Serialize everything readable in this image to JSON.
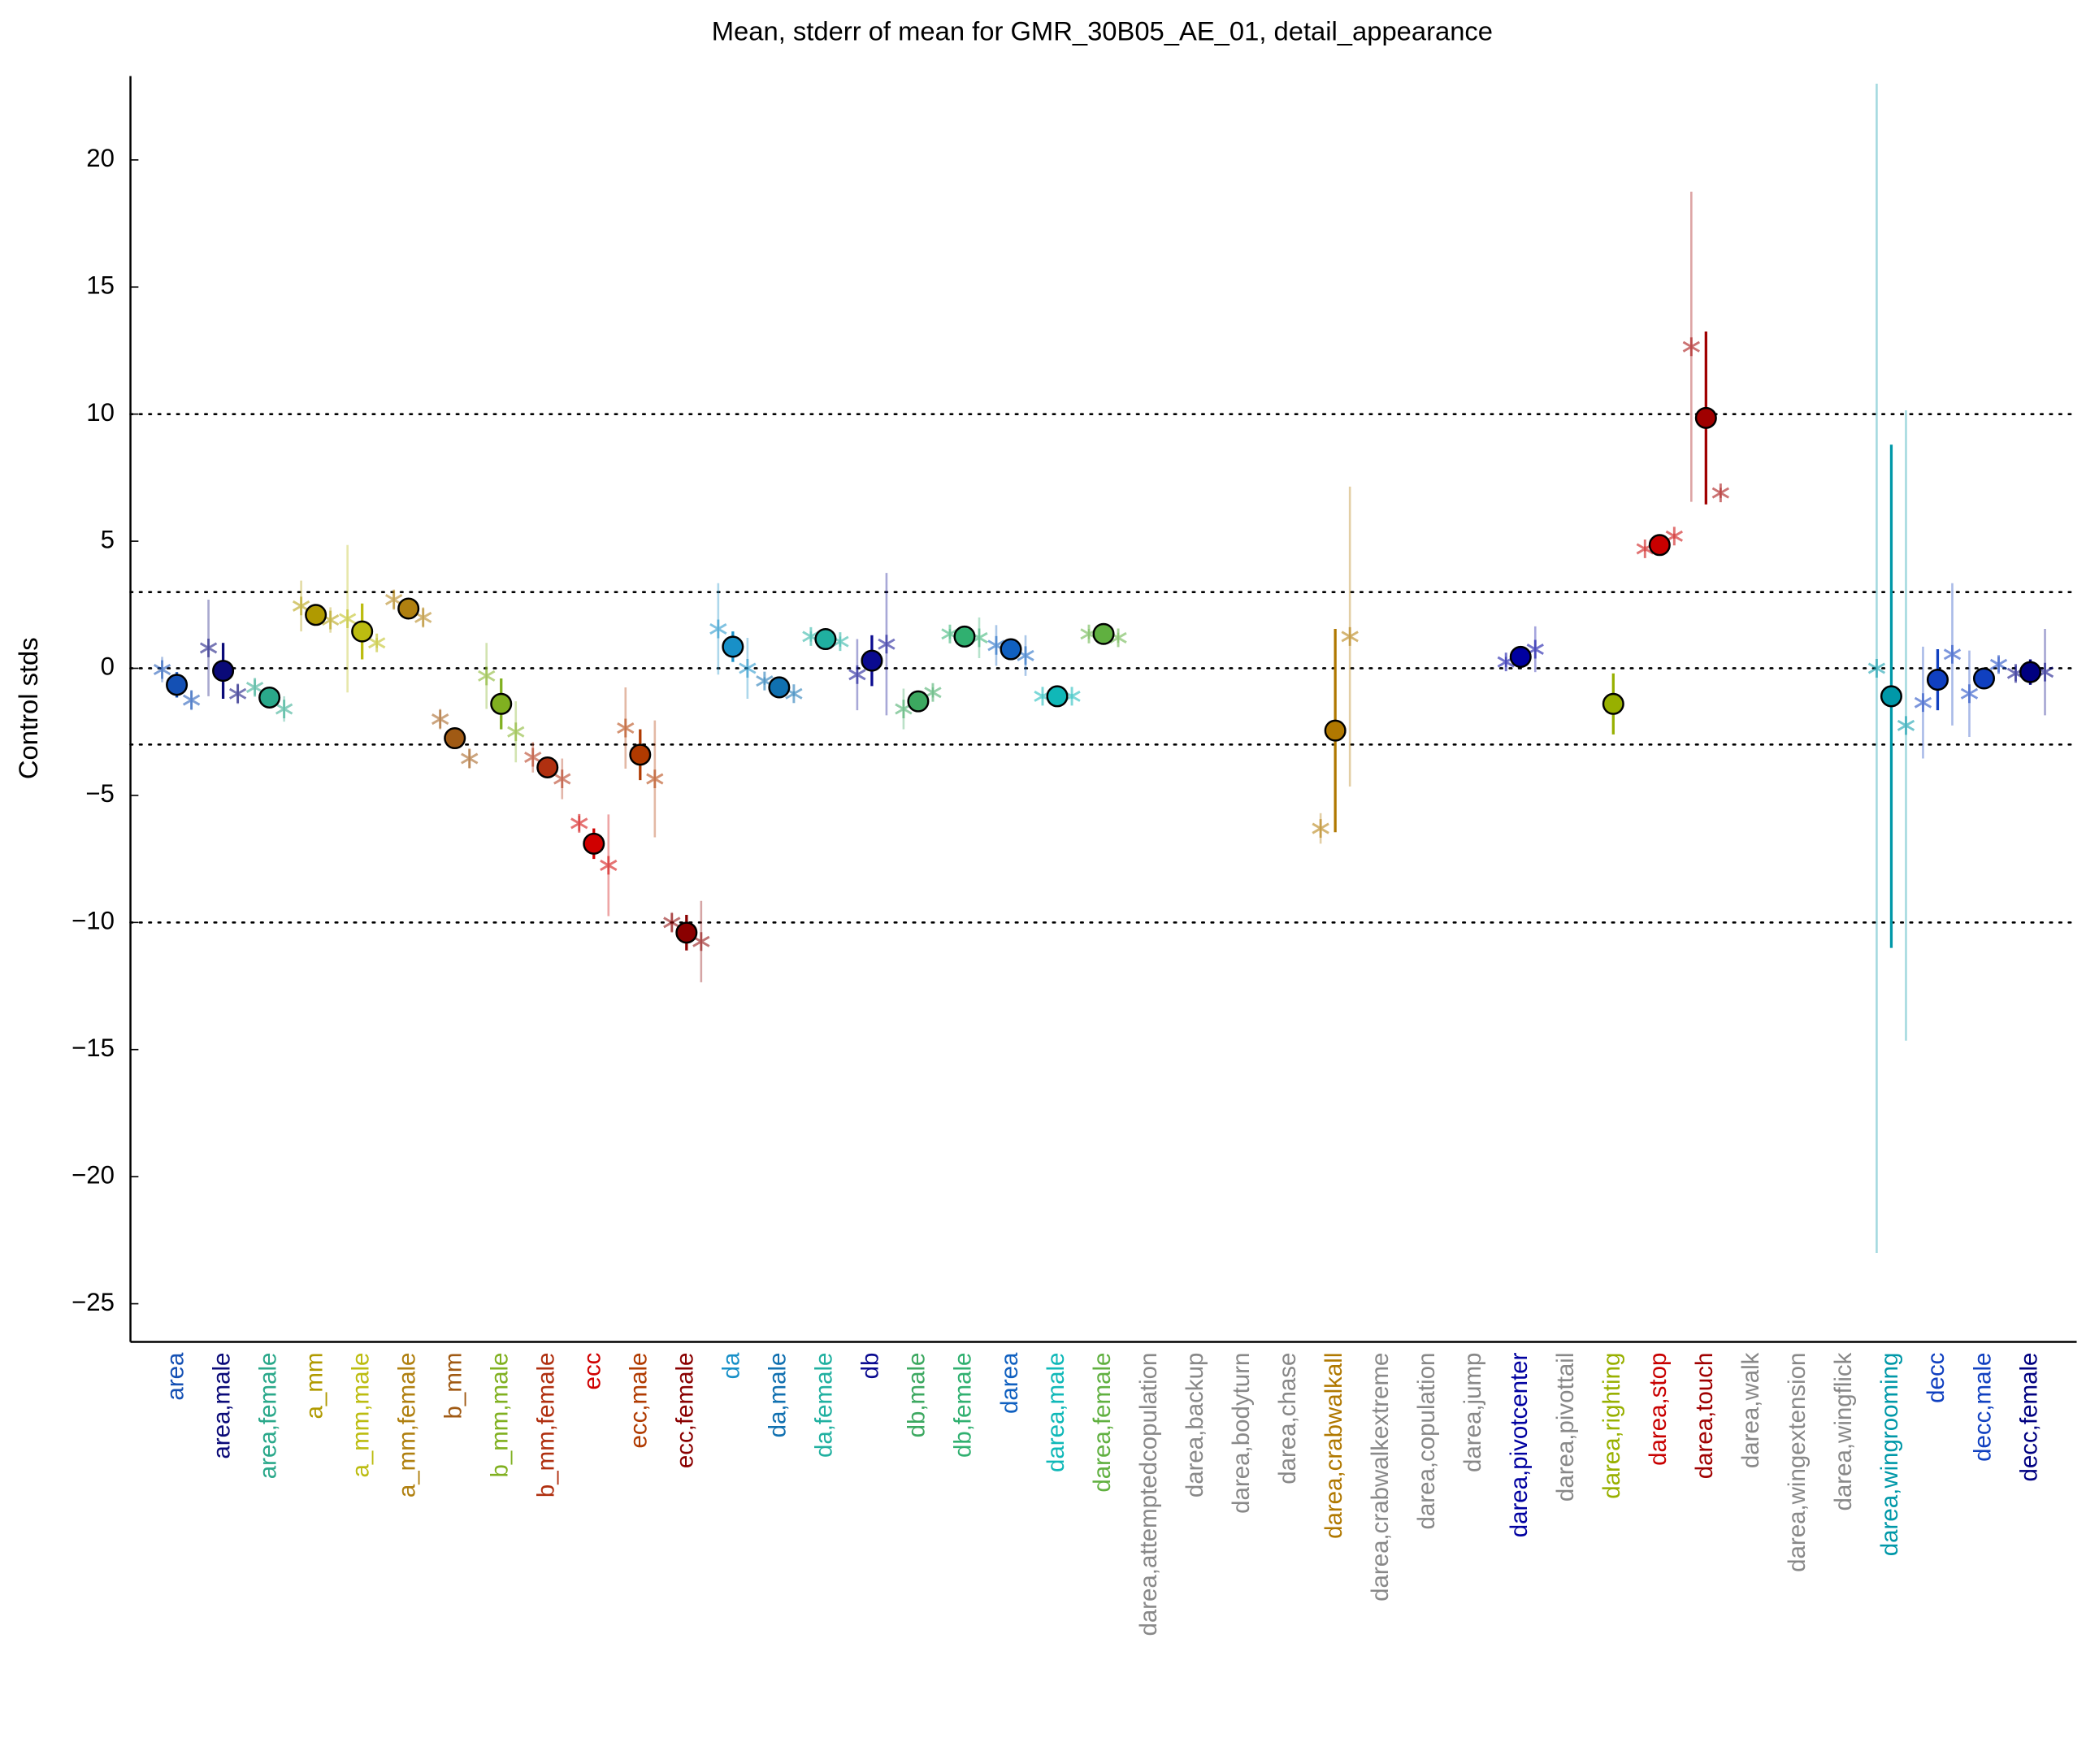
{
  "chart_data": {
    "type": "errorbar",
    "title": "Mean, stderr of mean for GMR_30B05_AE_01, detail_appearance",
    "y_label": "Control stds",
    "categories": [
      "area",
      "area,male",
      "area,female",
      "a_mm",
      "a_mm,male",
      "a_mm,female",
      "b_mm",
      "b_mm,male",
      "b_mm,female",
      "ecc",
      "ecc,male",
      "ecc,female",
      "da",
      "da,male",
      "da,female",
      "db",
      "db,male",
      "db,female",
      "darea",
      "darea,male",
      "darea,female",
      "darea,attemptedcopulation",
      "darea,backup",
      "darea,bodyturn",
      "darea,chase",
      "darea,crabwalkall",
      "darea,crabwalkextreme",
      "darea,copulation",
      "darea,jump",
      "darea,pivotcenter",
      "darea,pivottail",
      "darea,righting",
      "darea,stop",
      "darea,touch",
      "darea,walk",
      "darea,wingextension",
      "darea,wingflick",
      "darea,wingrooming",
      "decc",
      "decc,male",
      "decc,female"
    ],
    "colors": [
      "#1450b4",
      "#0a0a78",
      "#2aa88a",
      "#b09a00",
      "#bcbc10",
      "#b08010",
      "#a05a14",
      "#80b020",
      "#b03010",
      "#d00000",
      "#b03a00",
      "#8a0000",
      "#1890c8",
      "#1070b0",
      "#20b0a0",
      "#0a0a90",
      "#3ca860",
      "#30b070",
      "#1060c0",
      "#10b8b8",
      "#60b040",
      "#888888",
      "#888888",
      "#888888",
      "#888888",
      "#b07800",
      "#888888",
      "#888888",
      "#888888",
      "#0000a0",
      "#888888",
      "#98b000",
      "#c80000",
      "#a00000",
      "#888888",
      "#888888",
      "#888888",
      "#0098a8",
      "#1040c0",
      "#1040c0",
      "#000080"
    ],
    "means": {
      "values": [
        -0.65,
        -0.1,
        -1.15,
        2.1,
        1.45,
        2.35,
        -2.75,
        -1.4,
        -3.9,
        -6.9,
        -3.4,
        -10.4,
        0.85,
        -0.75,
        1.15,
        0.3,
        -1.3,
        1.25,
        0.75,
        -1.1,
        1.35,
        null,
        null,
        null,
        null,
        -2.45,
        null,
        null,
        null,
        0.45,
        null,
        -1.4,
        4.85,
        9.85,
        null,
        null,
        null,
        -1.1,
        -0.45,
        -0.4,
        -0.15
      ],
      "errors": [
        0.5,
        1.1,
        0.3,
        0.3,
        1.1,
        0.3,
        0.4,
        1.0,
        0.3,
        0.6,
        1.0,
        0.7,
        0.6,
        0.2,
        0.2,
        1.0,
        0.2,
        0.2,
        0.3,
        0.1,
        0.1,
        null,
        null,
        null,
        null,
        4.0,
        null,
        null,
        null,
        0.2,
        null,
        1.2,
        0.2,
        3.4,
        null,
        null,
        null,
        9.9,
        1.2,
        0.3,
        0.5
      ]
    },
    "left": {
      "values": [
        -0.05,
        0.8,
        -0.75,
        2.45,
        1.95,
        2.7,
        -2.0,
        -0.3,
        -3.5,
        -6.1,
        -2.35,
        -10.0,
        1.55,
        -0.5,
        1.25,
        -0.25,
        -1.6,
        1.35,
        0.9,
        -1.1,
        1.35,
        null,
        null,
        null,
        null,
        -6.3,
        null,
        null,
        null,
        0.25,
        null,
        null,
        4.7,
        12.65,
        null,
        null,
        null,
        0.0,
        -1.35,
        -1.0,
        -0.2
      ],
      "errors": [
        0.5,
        1.9,
        0.3,
        1.0,
        2.9,
        0.4,
        0.4,
        1.3,
        0.6,
        0.3,
        1.6,
        0.4,
        1.8,
        0.15,
        0.2,
        1.4,
        0.8,
        0.2,
        0.8,
        0.1,
        0.2,
        null,
        null,
        null,
        null,
        0.6,
        null,
        null,
        null,
        0.2,
        null,
        null,
        0.1,
        6.1,
        null,
        null,
        null,
        23.0,
        2.2,
        1.7,
        0.3
      ]
    },
    "right": {
      "values": [
        -1.25,
        -1.0,
        -1.6,
        1.9,
        1.0,
        2.0,
        -3.55,
        -2.5,
        -4.35,
        -7.75,
        -4.35,
        -10.75,
        0.0,
        -1.0,
        1.05,
        0.95,
        -0.95,
        1.2,
        0.5,
        -1.1,
        1.2,
        null,
        null,
        null,
        null,
        1.25,
        null,
        null,
        null,
        0.75,
        null,
        null,
        5.2,
        6.9,
        null,
        null,
        null,
        -2.25,
        0.55,
        0.15,
        -0.15
      ],
      "errors": [
        0.4,
        0.4,
        0.5,
        0.5,
        0.2,
        0.4,
        0.4,
        1.2,
        0.8,
        2.0,
        2.3,
        1.6,
        1.2,
        0.1,
        0.2,
        2.8,
        0.2,
        0.8,
        0.8,
        0.1,
        0.2,
        null,
        null,
        null,
        null,
        5.9,
        null,
        null,
        null,
        0.9,
        null,
        null,
        0.1,
        0.2,
        null,
        null,
        null,
        12.4,
        2.8,
        0.3,
        1.7
      ]
    },
    "ylim": [
      -26.5,
      23.3
    ],
    "yticks": [
      {
        "value": -25,
        "label": "−25"
      },
      {
        "value": -20,
        "label": "−20"
      },
      {
        "value": -15,
        "label": "−15"
      },
      {
        "value": -10,
        "label": "−10"
      },
      {
        "value": -5,
        "label": "−5"
      },
      0,
      5,
      10,
      15,
      20
    ],
    "hlines": [
      10,
      3,
      0,
      -3,
      -10
    ]
  }
}
